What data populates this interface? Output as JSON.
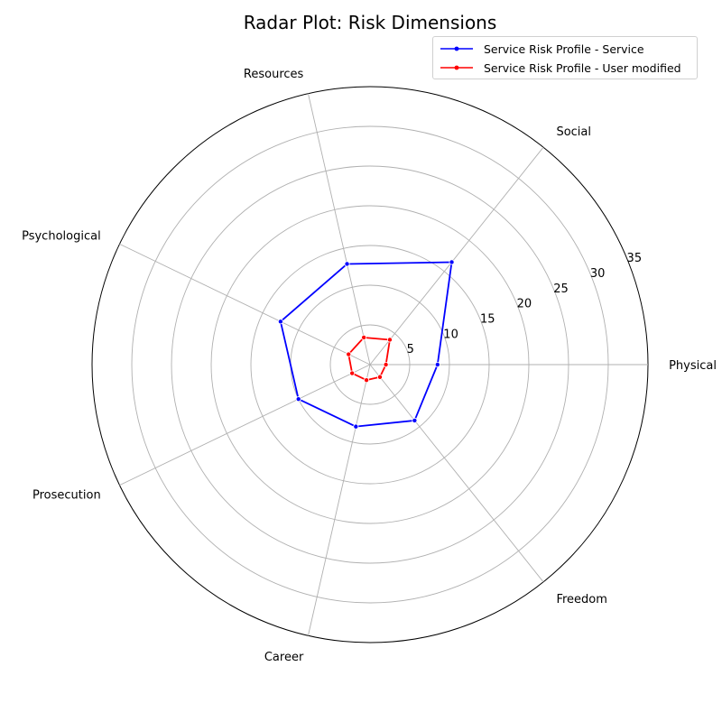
{
  "chart_data": {
    "type": "radar",
    "title": "Radar Plot: Risk Dimensions",
    "categories": [
      "Physical",
      "Social",
      "Resources",
      "Psychological",
      "Prosecution",
      "Career",
      "Freedom"
    ],
    "radial_ticks": [
      5,
      10,
      15,
      20,
      25,
      30,
      35
    ],
    "rlim": [
      0,
      35
    ],
    "grid": true,
    "legend_position": "top-right",
    "series": [
      {
        "name": "Service Risk Profile - Service",
        "color": "#0000ff",
        "values": [
          8.5,
          16.5,
          13,
          12.5,
          10,
          8,
          9
        ]
      },
      {
        "name": "Service Risk Profile - User modified",
        "color": "#ff0000",
        "values": [
          2,
          4,
          3.5,
          3,
          2.5,
          2,
          2
        ]
      }
    ]
  }
}
